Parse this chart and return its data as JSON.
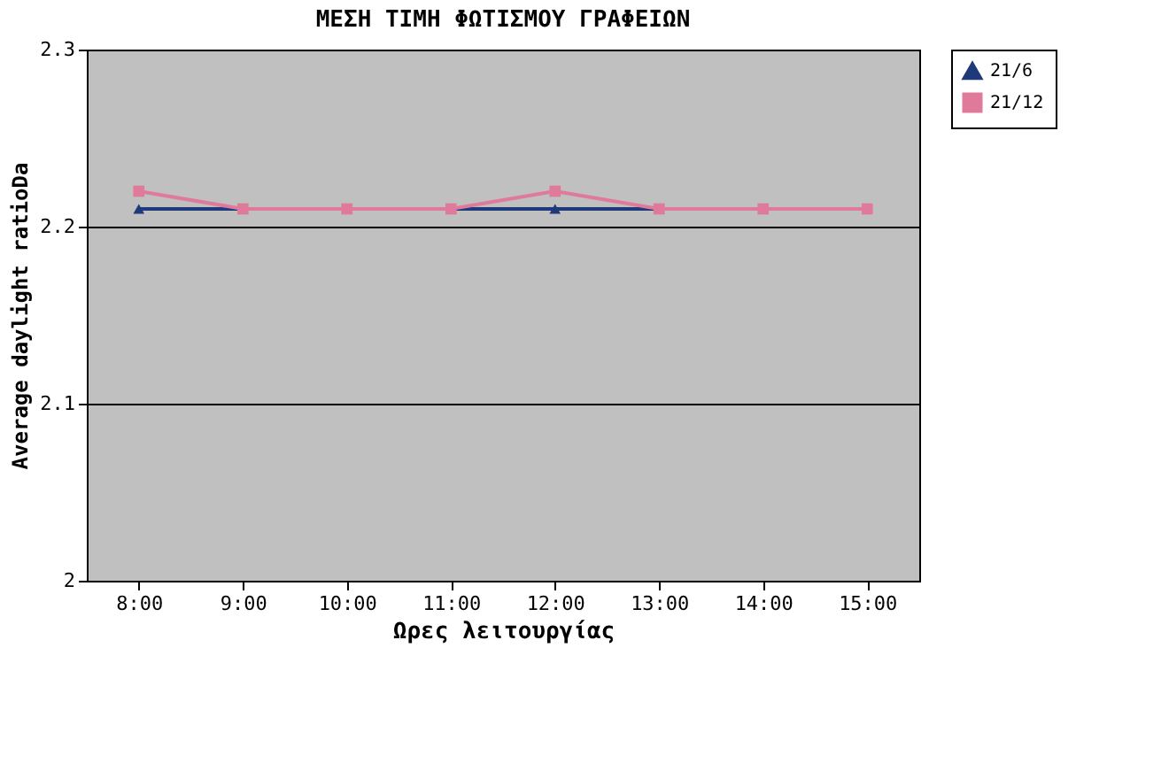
{
  "chart_data": {
    "type": "line",
    "title": "ΜΕΣΗ ΤΙΜΗ ΦΩΤΙΣΜΟΥ ΓΡΑΦΕΙΩΝ",
    "xlabel": "Ωρες λειτουργίας",
    "ylabel": "Average daylight ratioDa",
    "categories": [
      "8:00",
      "9:00",
      "10:00",
      "11:00",
      "12:00",
      "13:00",
      "14:00",
      "15:00"
    ],
    "series": [
      {
        "name": "21/6",
        "color": "#1f3a7a",
        "marker": "triangle",
        "values": [
          2.21,
          2.21,
          null,
          2.21,
          2.21,
          2.21,
          null,
          null
        ]
      },
      {
        "name": "21/12",
        "color": "#e07a9a",
        "marker": "square",
        "values": [
          2.22,
          2.21,
          2.21,
          2.21,
          2.22,
          2.21,
          2.21,
          2.21
        ]
      }
    ],
    "ylim": [
      2,
      2.3
    ],
    "yticks": [
      2,
      2.1,
      2.2,
      2.3
    ],
    "grid": "y",
    "legend": "top right"
  }
}
